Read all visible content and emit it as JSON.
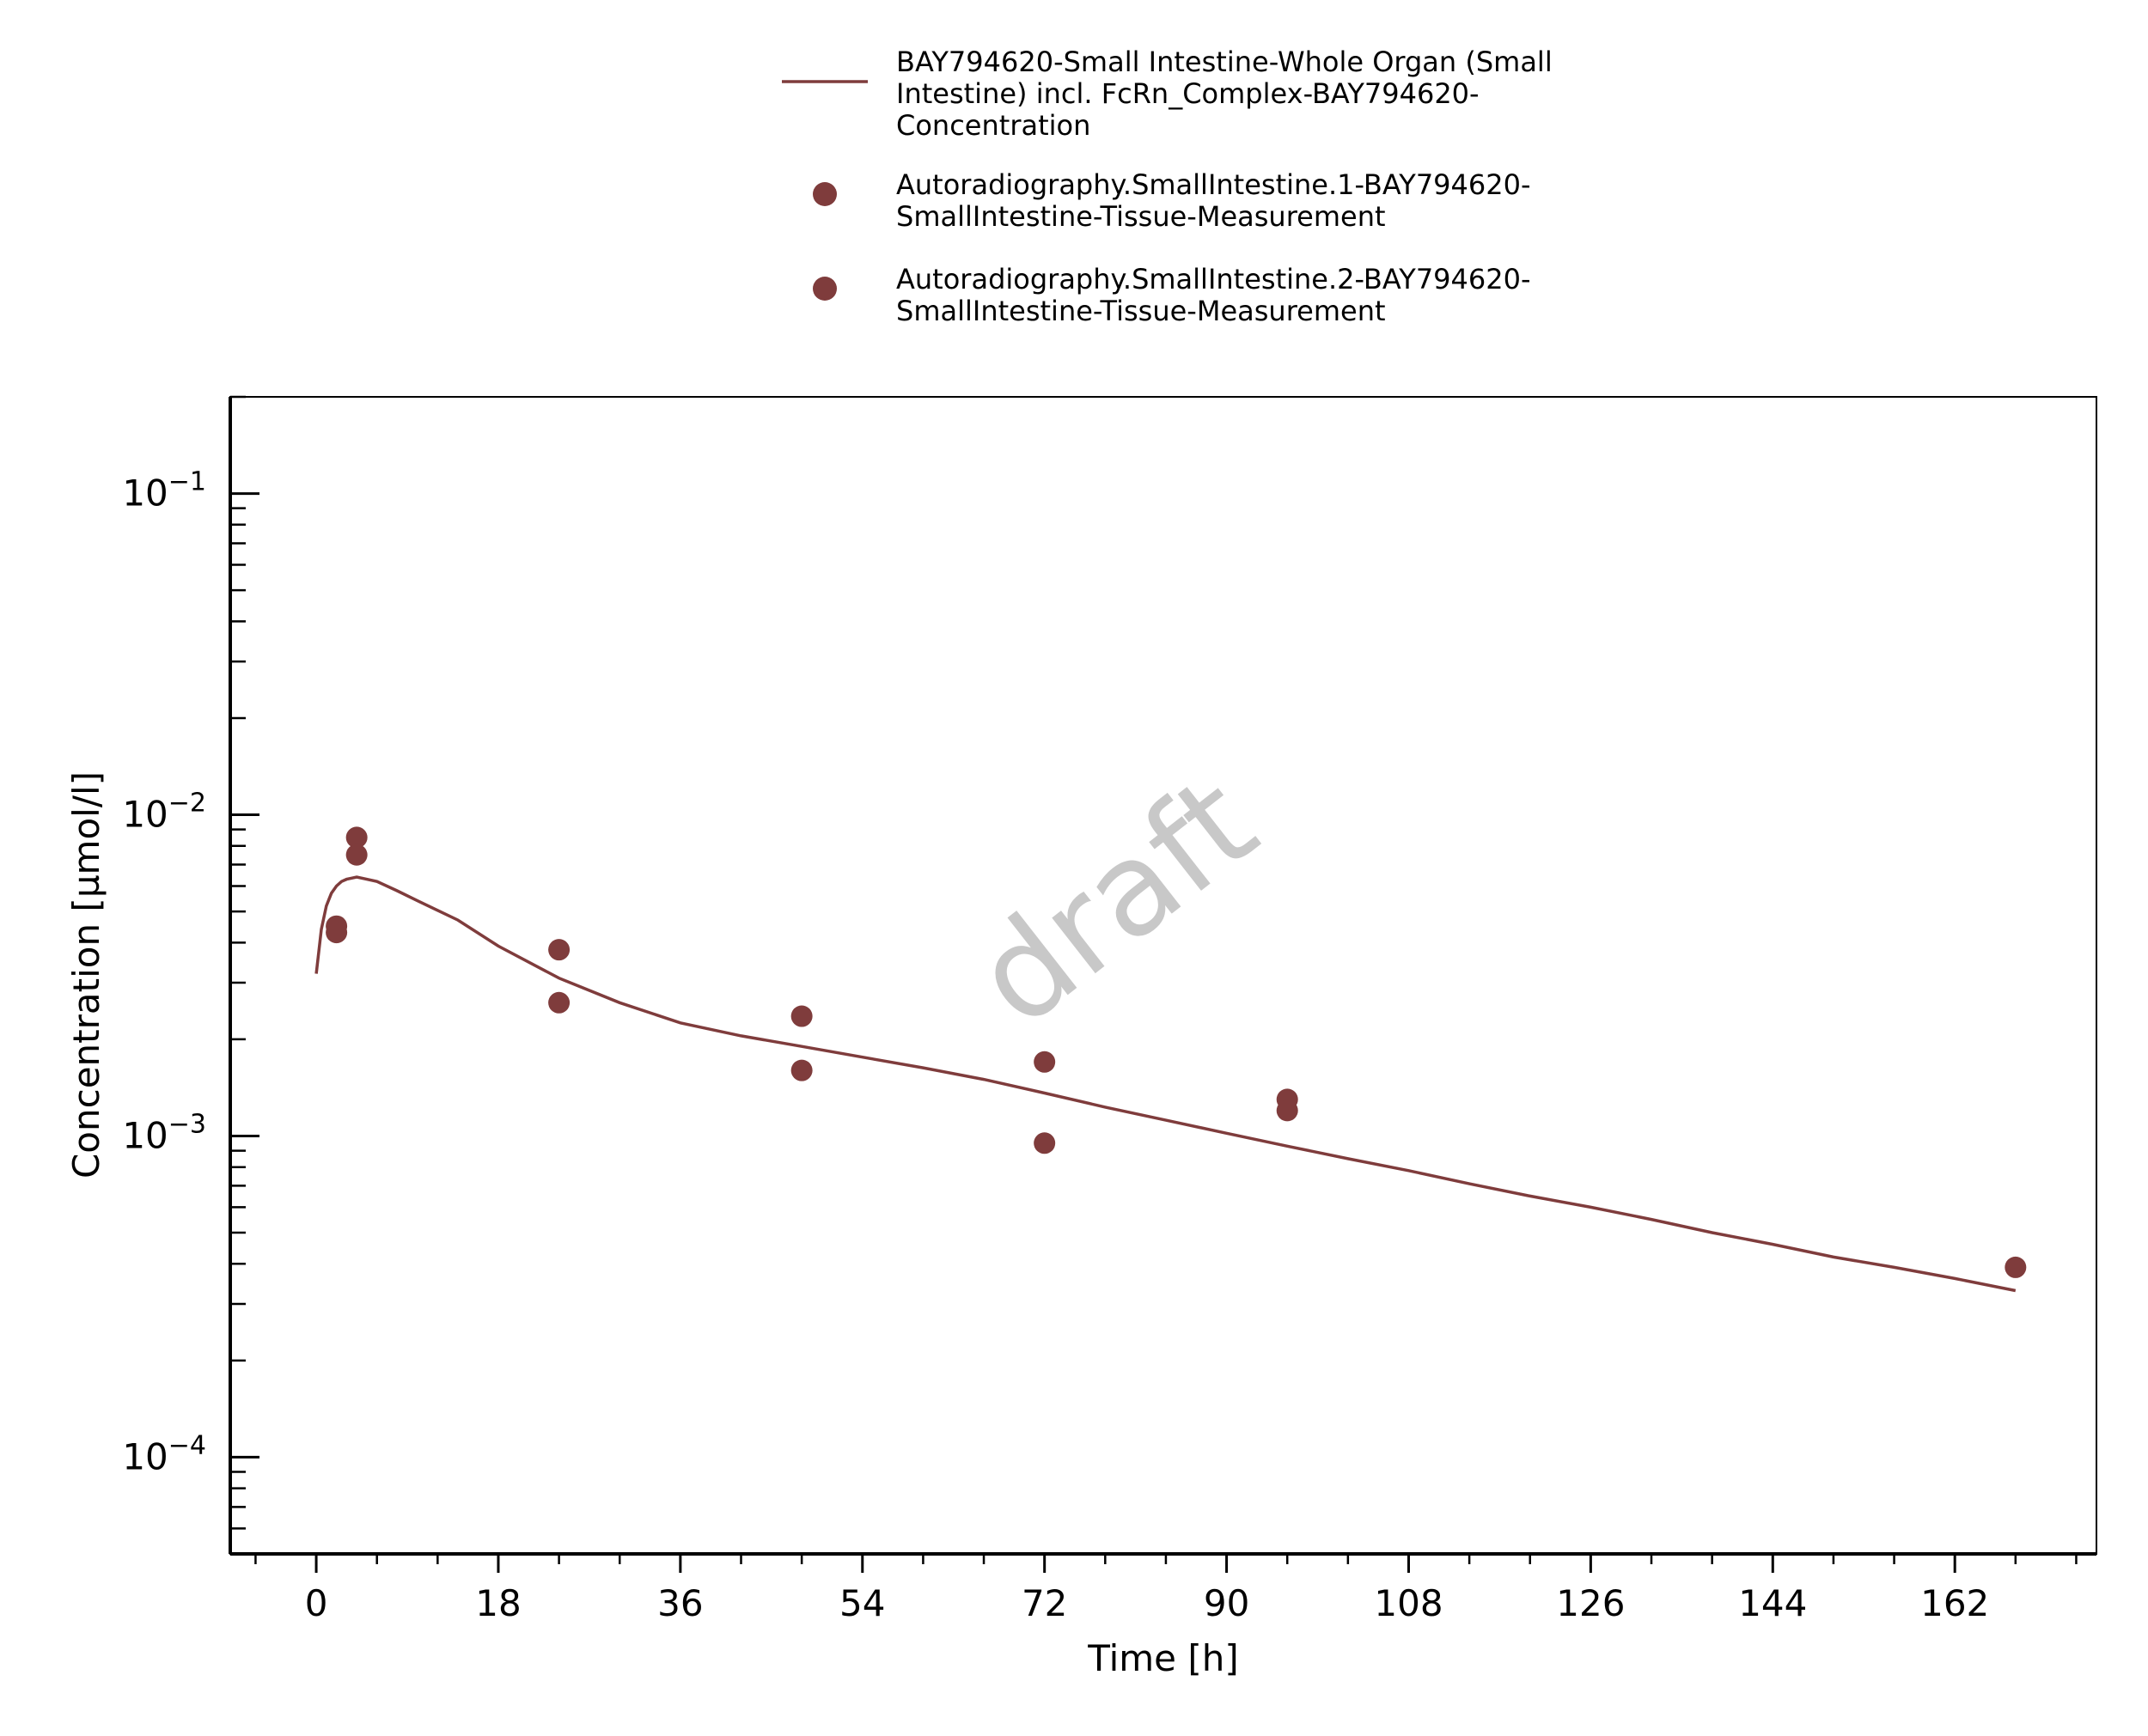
{
  "chart_data": {
    "type": "line",
    "xlabel": "Time [h]",
    "ylabel": "Concentration [µmol/l]",
    "watermark": "draft",
    "xlim": [
      -8.5,
      176
    ],
    "ylim": [
      5e-05,
      0.2
    ],
    "y_scale": "log",
    "x_ticks": [
      0,
      18,
      36,
      54,
      72,
      90,
      108,
      126,
      144,
      162
    ],
    "y_ticks": [
      {
        "base": "10",
        "exponent": "−4",
        "value": 0.0001
      },
      {
        "base": "10",
        "exponent": "−3",
        "value": 0.001
      },
      {
        "base": "10",
        "exponent": "−2",
        "value": 0.01
      },
      {
        "base": "10",
        "exponent": "−1",
        "value": 0.1
      }
    ],
    "grid": false,
    "legend_position": "top-center",
    "color": "#7f3c3c",
    "series": [
      {
        "name": "BAY794620-Small Intestine-Whole Organ (Small Intestine) incl. FcRn_Complex-BAY794620-Concentration",
        "legend_lines": [
          "BAY794620-Small Intestine-Whole Organ (Small",
          "Intestine) incl. FcRn_Complex-BAY794620-",
          "Concentration"
        ],
        "kind": "line",
        "x": [
          0,
          0.5,
          1,
          1.5,
          2,
          2.5,
          3,
          3.5,
          4,
          5,
          6,
          8,
          10,
          14,
          18,
          24,
          30,
          36,
          42,
          48,
          54,
          60,
          66,
          72,
          78,
          84,
          90,
          96,
          102,
          108,
          114,
          120,
          126,
          132,
          138,
          144,
          150,
          156,
          162,
          168
        ],
        "y": [
          0.0032,
          0.0044,
          0.0052,
          0.0057,
          0.006,
          0.0062,
          0.0063,
          0.00635,
          0.0064,
          0.0063,
          0.0062,
          0.0058,
          0.0054,
          0.0047,
          0.0039,
          0.0031,
          0.0026,
          0.00225,
          0.00205,
          0.0019,
          0.00176,
          0.00163,
          0.0015,
          0.00136,
          0.00123,
          0.00112,
          0.00102,
          0.00093,
          0.00085,
          0.00078,
          0.00071,
          0.00065,
          0.0006,
          0.00055,
          0.0005,
          0.00046,
          0.00042,
          0.00039,
          0.00036,
          0.00033
        ]
      },
      {
        "name": "Autoradiography.SmallIntestine.1-BAY794620-SmallIntestine-Tissue-Measurement",
        "legend_lines": [
          "Autoradiography.SmallIntestine.1-BAY794620-",
          "SmallIntestine-Tissue-Measurement"
        ],
        "kind": "scatter",
        "x": [
          2,
          4,
          24,
          48,
          72,
          96,
          168
        ],
        "y": [
          0.0045,
          0.0085,
          0.0038,
          0.00236,
          0.0017,
          0.0013,
          0.00039
        ]
      },
      {
        "name": "Autoradiography.SmallIntestine.2-BAY794620-SmallIntestine-Tissue-Measurement",
        "legend_lines": [
          "Autoradiography.SmallIntestine.2-BAY794620-",
          "SmallIntestine-Tissue-Measurement"
        ],
        "kind": "scatter",
        "x": [
          2,
          4,
          24,
          48,
          72,
          96
        ],
        "y": [
          0.0043,
          0.0075,
          0.0026,
          0.0016,
          0.00095,
          0.0012
        ]
      }
    ]
  }
}
